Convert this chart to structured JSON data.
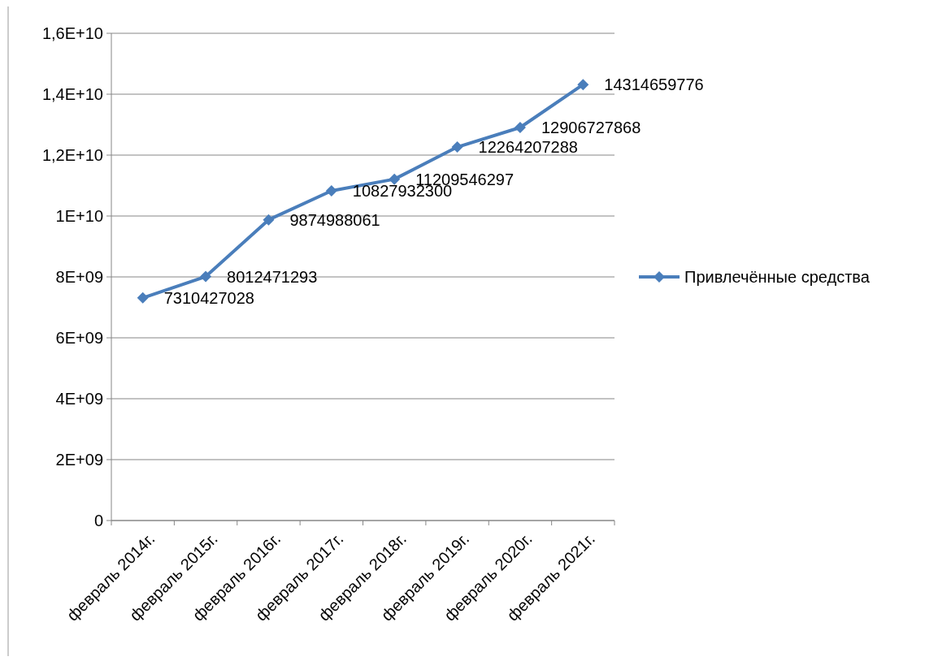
{
  "chart_data": {
    "type": "line",
    "categories": [
      "февраль 2014г.",
      "февраль 2015г.",
      "февраль 2016г.",
      "февраль 2017г.",
      "февраль 2018г.",
      "февраль 2019г.",
      "февраль 2020г.",
      "февраль 2021г."
    ],
    "series": [
      {
        "name": "Привлечённые средства",
        "color": "#4a7ebb",
        "values": [
          7310427028,
          8012471293,
          9874988061,
          10827932300,
          11209546297,
          12264207288,
          12906727868,
          14314659776
        ]
      }
    ],
    "ylim": [
      0,
      16000000000
    ],
    "yticks": [
      0,
      {
        "value": 2000000000,
        "label": "2E+09"
      },
      {
        "value": 4000000000,
        "label": "4E+09"
      },
      {
        "value": 6000000000,
        "label": "6E+09"
      },
      {
        "value": 8000000000,
        "label": "8E+09"
      },
      {
        "value": 10000000000,
        "label": "1E+10"
      },
      {
        "value": 12000000000,
        "label": "1,2E+10"
      },
      {
        "value": 14000000000,
        "label": "1,4E+10"
      },
      {
        "value": 16000000000,
        "label": "1,6E+10"
      }
    ],
    "grid": "y",
    "legend": "right",
    "marker": "diamond",
    "line_style": "solid",
    "data_labels": true
  }
}
